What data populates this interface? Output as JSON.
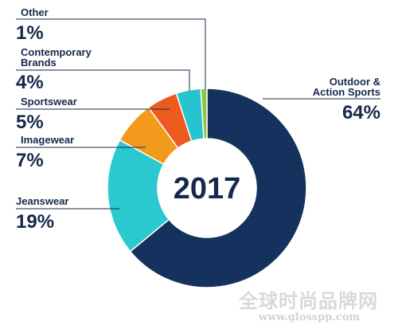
{
  "chart_data": {
    "type": "pie",
    "center_label": "2017",
    "slices": [
      {
        "key": "outdoor",
        "label": "Outdoor & Action Sports",
        "label_lines": [
          "Outdoor &",
          "Action Sports"
        ],
        "value_label": "64%",
        "value": 64,
        "color": "#15325e"
      },
      {
        "key": "jeanswear",
        "label": "Jeanswear",
        "label_lines": [
          "Jeanswear"
        ],
        "value_label": "19%",
        "value": 19,
        "color": "#2bc9cf"
      },
      {
        "key": "imagewear",
        "label": "Imagewear",
        "label_lines": [
          "Imagewear"
        ],
        "value_label": "7%",
        "value": 7,
        "color": "#f19a1c"
      },
      {
        "key": "sportswear",
        "label": "Sportswear",
        "label_lines": [
          "Sportswear"
        ],
        "value_label": "5%",
        "value": 5,
        "color": "#ed5a20"
      },
      {
        "key": "contemporary",
        "label": "Contemporary Brands",
        "label_lines": [
          "Contemporary",
          "Brands"
        ],
        "value_label": "4%",
        "value": 4,
        "color": "#27c3cf"
      },
      {
        "key": "other",
        "label": "Other",
        "label_lines": [
          "Other"
        ],
        "value_label": "1%",
        "value": 1,
        "color": "#8dc63f"
      }
    ]
  },
  "watermark": {
    "cn": "全球时尚品牌网",
    "url": "www.glosspp.com"
  }
}
